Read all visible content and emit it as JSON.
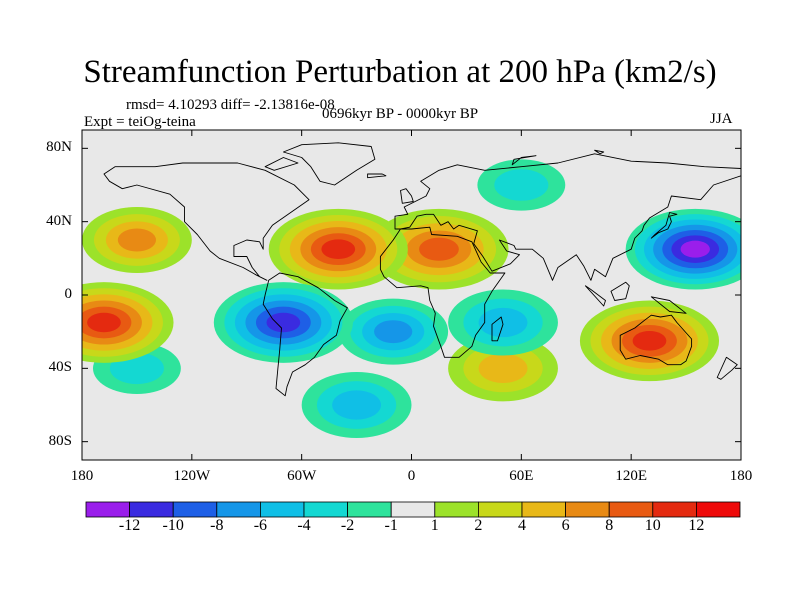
{
  "chart_data": {
    "type": "heatmap",
    "title": "Streamfunction Perturbation at 200 hPa (km2/s)",
    "stats_text": "rmsd= 4.10293 diff= -2.13816e-08",
    "experiment_text": "Expt = teiOg-teina",
    "period_text": "0696kyr BP - 0000kyr BP",
    "season_text": "JJA",
    "units": "km2/s",
    "lon_range": [
      -180,
      180
    ],
    "lat_range": [
      -90,
      90
    ],
    "xticks": [
      {
        "value": -180,
        "label": "180"
      },
      {
        "value": -120,
        "label": "120W"
      },
      {
        "value": -60,
        "label": "60W"
      },
      {
        "value": 0,
        "label": "0"
      },
      {
        "value": 60,
        "label": "60E"
      },
      {
        "value": 120,
        "label": "120E"
      },
      {
        "value": 180,
        "label": "180"
      }
    ],
    "yticks": [
      {
        "value": 80,
        "label": "80N"
      },
      {
        "value": 40,
        "label": "40N"
      },
      {
        "value": 0,
        "label": "0"
      },
      {
        "value": -40,
        "label": "40S"
      },
      {
        "value": -80,
        "label": "80S"
      }
    ],
    "colorbar": {
      "levels": [
        "-12",
        "-10",
        "-8",
        "-6",
        "-4",
        "-2",
        "-1",
        "1",
        "2",
        "4",
        "6",
        "8",
        "10",
        "12"
      ],
      "colors": [
        "#9a1eeb",
        "#3a2be0",
        "#1e5fe6",
        "#1596e8",
        "#10bfe6",
        "#14d8d2",
        "#2ee39c",
        "#e8e8e8",
        "#9ce22a",
        "#c8d81a",
        "#e8b818",
        "#e88a14",
        "#e85a12",
        "#e42a10",
        "#ee0a0a"
      ]
    },
    "features": [
      {
        "name": "high-north-pacific",
        "lon": -150,
        "lat": 30,
        "value": 7
      },
      {
        "name": "high-central-pacific-west",
        "lon": -168,
        "lat": -15,
        "value": 10
      },
      {
        "name": "high-north-atlantic",
        "lon": -40,
        "lat": 25,
        "value": 10
      },
      {
        "name": "high-north-africa",
        "lon": 15,
        "lat": 25,
        "value": 8
      },
      {
        "name": "high-australia",
        "lon": 130,
        "lat": -25,
        "value": 10
      },
      {
        "name": "high-southern-africa",
        "lon": 50,
        "lat": -40,
        "value": 4
      },
      {
        "name": "low-northwest-pacific",
        "lon": 155,
        "lat": 25,
        "value": -12
      },
      {
        "name": "low-south-america",
        "lon": -70,
        "lat": -15,
        "value": -11
      },
      {
        "name": "low-south-atlantic",
        "lon": -10,
        "lat": -20,
        "value": -6
      },
      {
        "name": "low-indian-ocean",
        "lon": 50,
        "lat": -15,
        "value": -5
      },
      {
        "name": "low-southern-ocean",
        "lon": -30,
        "lat": -60,
        "value": -4
      },
      {
        "name": "low-north-eurasia",
        "lon": 60,
        "lat": 60,
        "value": -2
      },
      {
        "name": "low-south-pacific",
        "lon": -150,
        "lat": -40,
        "value": -3
      }
    ]
  }
}
